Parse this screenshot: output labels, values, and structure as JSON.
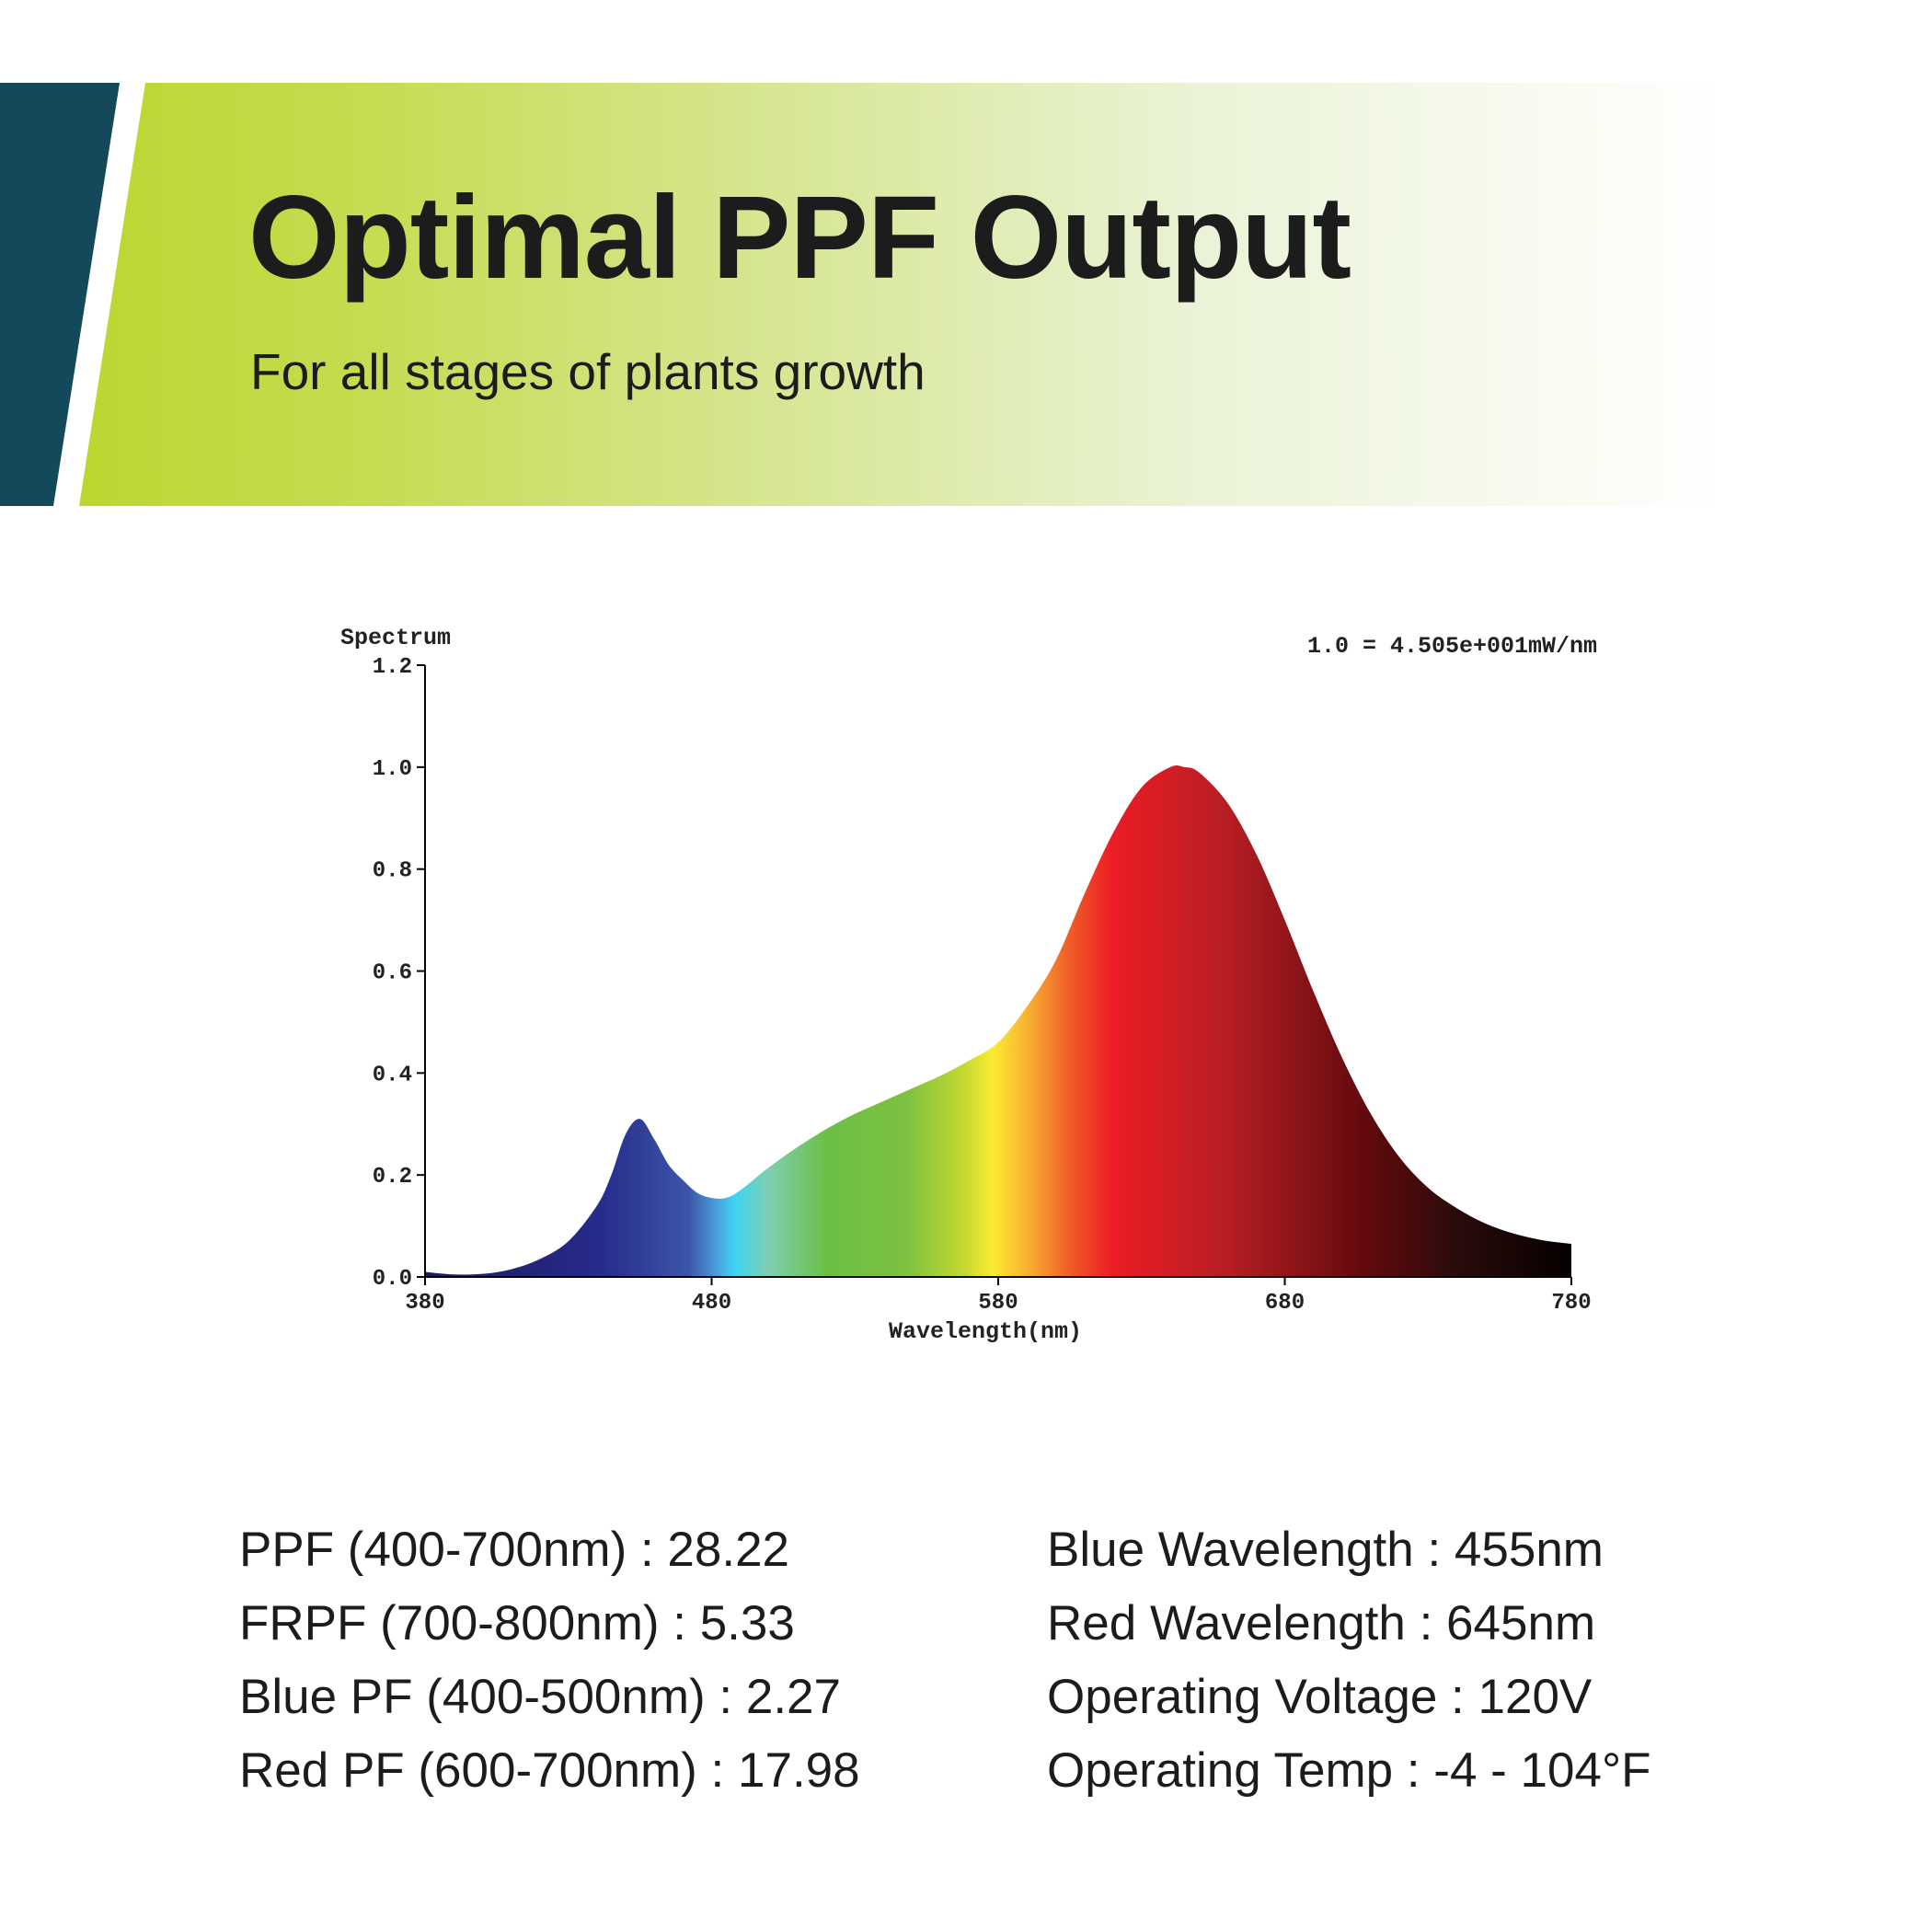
{
  "header": {
    "title": "Optimal PPF Output",
    "subtitle": "For all stages of plants growth",
    "accent_dark": "#13495a",
    "accent_green": "#bcd630"
  },
  "chart_data": {
    "type": "area",
    "title": "Spectrum",
    "annotation": "1.0 = 4.505e+001mW/nm",
    "xlabel": "Wavelength(nm)",
    "ylabel": "Spectrum",
    "xlim": [
      380,
      780
    ],
    "ylim": [
      0,
      1.2
    ],
    "x_ticks": [
      "380",
      "480",
      "580",
      "680",
      "780"
    ],
    "y_ticks": [
      "0.0",
      "0.2",
      "0.4",
      "0.6",
      "0.8",
      "1.0",
      "1.2"
    ],
    "fill": "visible-spectrum gradient",
    "series": [
      {
        "name": "Spectrum",
        "x": [
          380,
          390,
          400,
          410,
          420,
          430,
          440,
          445,
          450,
          455,
          460,
          465,
          470,
          475,
          480,
          485,
          490,
          500,
          510,
          520,
          530,
          540,
          550,
          560,
          570,
          580,
          590,
          600,
          610,
          620,
          630,
          640,
          645,
          650,
          660,
          670,
          680,
          690,
          700,
          710,
          720,
          730,
          740,
          750,
          760,
          770,
          780
        ],
        "values": [
          0.01,
          0.005,
          0.006,
          0.015,
          0.035,
          0.07,
          0.14,
          0.2,
          0.28,
          0.31,
          0.27,
          0.22,
          0.19,
          0.165,
          0.155,
          0.155,
          0.17,
          0.215,
          0.255,
          0.29,
          0.32,
          0.345,
          0.37,
          0.395,
          0.425,
          0.46,
          0.53,
          0.62,
          0.75,
          0.87,
          0.96,
          1.0,
          1.0,
          0.99,
          0.93,
          0.83,
          0.7,
          0.56,
          0.43,
          0.32,
          0.235,
          0.175,
          0.135,
          0.105,
          0.085,
          0.072,
          0.065
        ]
      }
    ]
  },
  "specs": {
    "left": [
      "PPF (400-700nm) : 28.22",
      "FRPF (700-800nm) : 5.33",
      "Blue PF (400-500nm) : 2.27",
      "Red PF (600-700nm) : 17.98"
    ],
    "right": [
      "Blue Wavelength : 455nm",
      "Red Wavelength : 645nm",
      "Operating Voltage : 120V",
      "Operating Temp : -4 - 104°F"
    ]
  }
}
